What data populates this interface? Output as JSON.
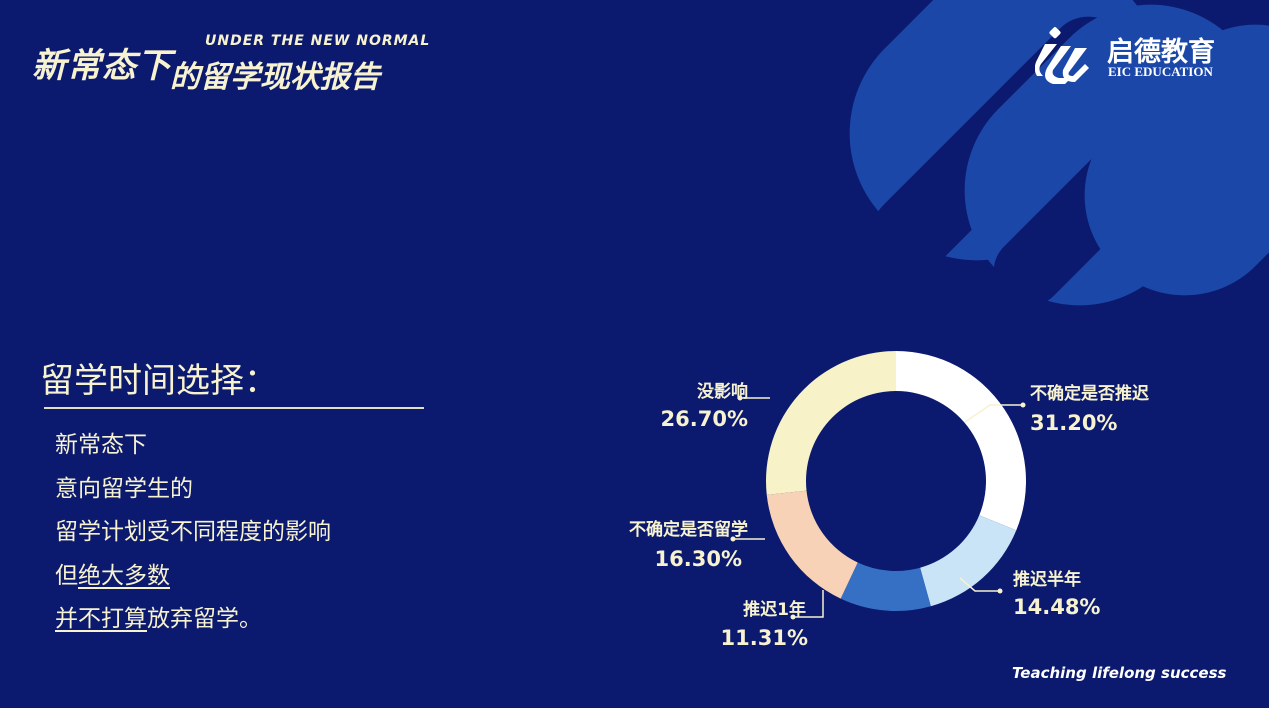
{
  "header": {
    "title_zh_part1": "新常态下",
    "title_zh_part2": "的留学现状报告",
    "subtitle_en": "UNDER THE NEW NORMAL"
  },
  "logo": {
    "name_zh": "启德教育",
    "name_en": "EIC EDUCATION"
  },
  "section": {
    "title": "留学时间选择：",
    "lines": [
      [
        {
          "t": "新常态下",
          "u": false
        }
      ],
      [
        {
          "t": "意向留学生的",
          "u": false
        }
      ],
      [
        {
          "t": "留学计划受不同程度的影响",
          "u": false
        }
      ],
      [
        {
          "t": "但",
          "u": false
        },
        {
          "t": "绝大多数",
          "u": true
        }
      ],
      [
        {
          "t": "并不打算",
          "u": true
        },
        {
          "t": "放弃留学。",
          "u": false
        }
      ]
    ]
  },
  "tagline": "Teaching lifelong success",
  "colors": {
    "background": "#0b1a6f",
    "text": "#f7f2cf",
    "accent_band": "#1b47a8"
  },
  "chart_data": {
    "type": "pie",
    "donut": true,
    "start": "top, clockwise",
    "categories": [
      "不确定是否推迟",
      "推迟半年",
      "推迟1年",
      "不确定是否留学",
      "没影响"
    ],
    "values": [
      31.2,
      14.48,
      11.31,
      16.3,
      26.7
    ],
    "data_labels": [
      "31.20%",
      "14.48%",
      "11.31%",
      "16.30%",
      "26.70%"
    ],
    "colors": [
      "#ffffff",
      "#c9e3f7",
      "#3670c4",
      "#f8d2b6",
      "#f7f2c8"
    ]
  }
}
